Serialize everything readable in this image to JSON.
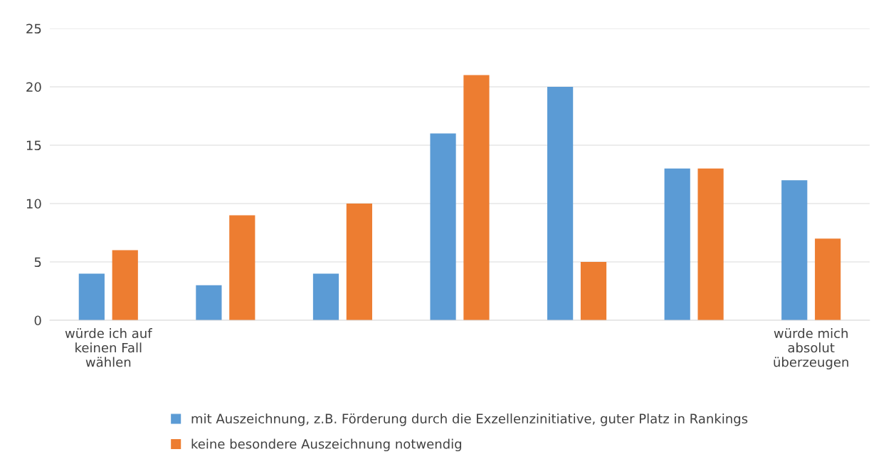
{
  "chart_data": {
    "type": "bar",
    "categories": [
      "würde ich auf\nkeinen Fall\nwählen",
      null,
      null,
      null,
      null,
      null,
      "würde mich\nabsolut\nüberzeugen"
    ],
    "series": [
      {
        "name": "mit Auszeichnung, z.B. Förderung durch die Exzellenzinitiative, guter Platz in Rankings",
        "color": "#5b9bd5",
        "values": [
          4,
          3,
          4,
          16,
          20,
          13,
          12
        ]
      },
      {
        "name": "keine besondere Auszeichnung notwendig",
        "color": "#ed7d31",
        "values": [
          6,
          9,
          10,
          21,
          5,
          13,
          7
        ]
      }
    ],
    "ylim": [
      0,
      25
    ],
    "yticks": [
      0,
      5,
      10,
      15,
      20,
      25
    ],
    "grid": "y",
    "legend": "bottom"
  }
}
